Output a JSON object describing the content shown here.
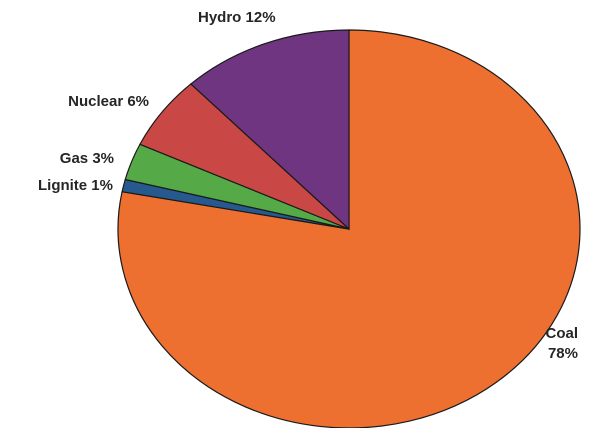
{
  "chart_data": {
    "type": "pie",
    "title": "",
    "slices": [
      {
        "label": "Coal",
        "value": 78,
        "value_text": "78%",
        "color": "#ed7031"
      },
      {
        "label": "Lignite",
        "value": 1,
        "value_text": "1%",
        "color": "#265a8e"
      },
      {
        "label": "Gas",
        "value": 3,
        "value_text": "3%",
        "color": "#55a946"
      },
      {
        "label": "Nuclear",
        "value": 6,
        "value_text": "6%",
        "color": "#c94846"
      },
      {
        "label": "Hydro",
        "value": 12,
        "value_text": "12%",
        "color": "#6f3580"
      }
    ],
    "start": "12 o'clock",
    "direction": "clockwise",
    "legend": "none"
  }
}
